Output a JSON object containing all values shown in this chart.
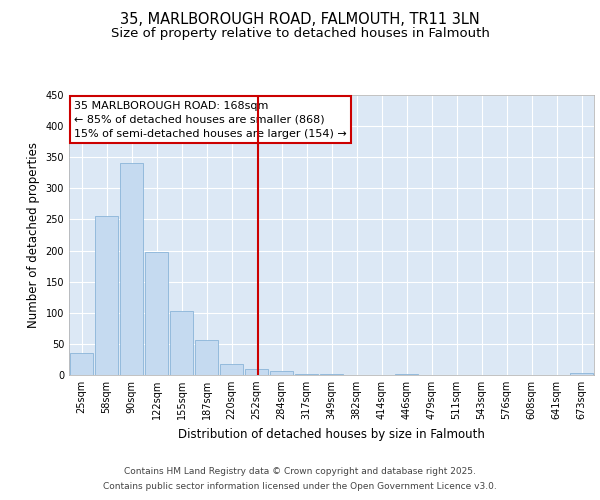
{
  "title_line1": "35, MARLBOROUGH ROAD, FALMOUTH, TR11 3LN",
  "title_line2": "Size of property relative to detached houses in Falmouth",
  "xlabel": "Distribution of detached houses by size in Falmouth",
  "ylabel": "Number of detached properties",
  "categories": [
    "25sqm",
    "58sqm",
    "90sqm",
    "122sqm",
    "155sqm",
    "187sqm",
    "220sqm",
    "252sqm",
    "284sqm",
    "317sqm",
    "349sqm",
    "382sqm",
    "414sqm",
    "446sqm",
    "479sqm",
    "511sqm",
    "543sqm",
    "576sqm",
    "608sqm",
    "641sqm",
    "673sqm"
  ],
  "values": [
    36,
    256,
    341,
    198,
    103,
    57,
    18,
    10,
    6,
    2,
    1,
    0,
    0,
    1,
    0,
    0,
    0,
    0,
    0,
    0,
    3
  ],
  "bar_color": "#c5daf0",
  "bar_edgecolor": "#8ab4d8",
  "vline_color": "#cc0000",
  "vline_xidx": 4,
  "annotation_line1": "35 MARLBOROUGH ROAD: 168sqm",
  "annotation_line2": "← 85% of detached houses are smaller (868)",
  "annotation_line3": "15% of semi-detached houses are larger (154) →",
  "annotation_box_facecolor": "white",
  "annotation_box_edgecolor": "#cc0000",
  "ylim": [
    0,
    450
  ],
  "yticks": [
    0,
    50,
    100,
    150,
    200,
    250,
    300,
    350,
    400,
    450
  ],
  "fig_background": "#ffffff",
  "plot_background": "#dce8f5",
  "grid_color": "#ffffff",
  "footer_line1": "Contains HM Land Registry data © Crown copyright and database right 2025.",
  "footer_line2": "Contains public sector information licensed under the Open Government Licence v3.0.",
  "title_fontsize": 10.5,
  "subtitle_fontsize": 9.5,
  "tick_fontsize": 7,
  "ylabel_fontsize": 8.5,
  "xlabel_fontsize": 8.5,
  "annotation_fontsize": 8,
  "footer_fontsize": 6.5
}
